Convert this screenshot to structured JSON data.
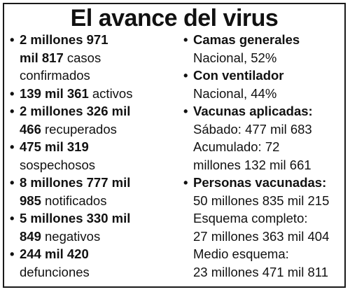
{
  "title": "El avance del virus",
  "left_items": [
    {
      "bold": "2 millones 971 mil 817",
      "bold_l1": "2 millones 971",
      "bold_l2": "mil 817",
      "rest": "casos",
      "rest2": "confirmados"
    },
    {
      "bold": "139 mil 361",
      "rest": "activos"
    },
    {
      "bold_l1": "2 millones 326 mil",
      "bold_l2": "466",
      "rest": "recuperados"
    },
    {
      "bold": "475 mil 319",
      "rest2": "sospechosos"
    },
    {
      "bold_l1": "8 millones 777 mil",
      "bold_l2": "985",
      "rest": "notificados"
    },
    {
      "bold_l1": "5 millones 330 mil",
      "bold_l2": "849",
      "rest": "negativos"
    },
    {
      "bold": "244 mil 420",
      "rest2": "defunciones"
    }
  ],
  "right_items": [
    {
      "label": "Camas generales",
      "lines": [
        "Nacional, 52%"
      ]
    },
    {
      "label": "Con ventilador",
      "lines": [
        "Nacional, 44%"
      ]
    },
    {
      "label": "Vacunas aplicadas:",
      "lines": [
        "Sábado: 477 mil 683",
        "Acumulado: 72",
        "millones 132 mil 661"
      ]
    },
    {
      "label": "Personas vacunadas:",
      "lines": [
        "50 millones 835 mil 215",
        "Esquema completo:",
        "27 millones 363 mil 404",
        "Medio esquema:",
        "23 millones 471 mil 811"
      ]
    }
  ],
  "bullet": "•"
}
